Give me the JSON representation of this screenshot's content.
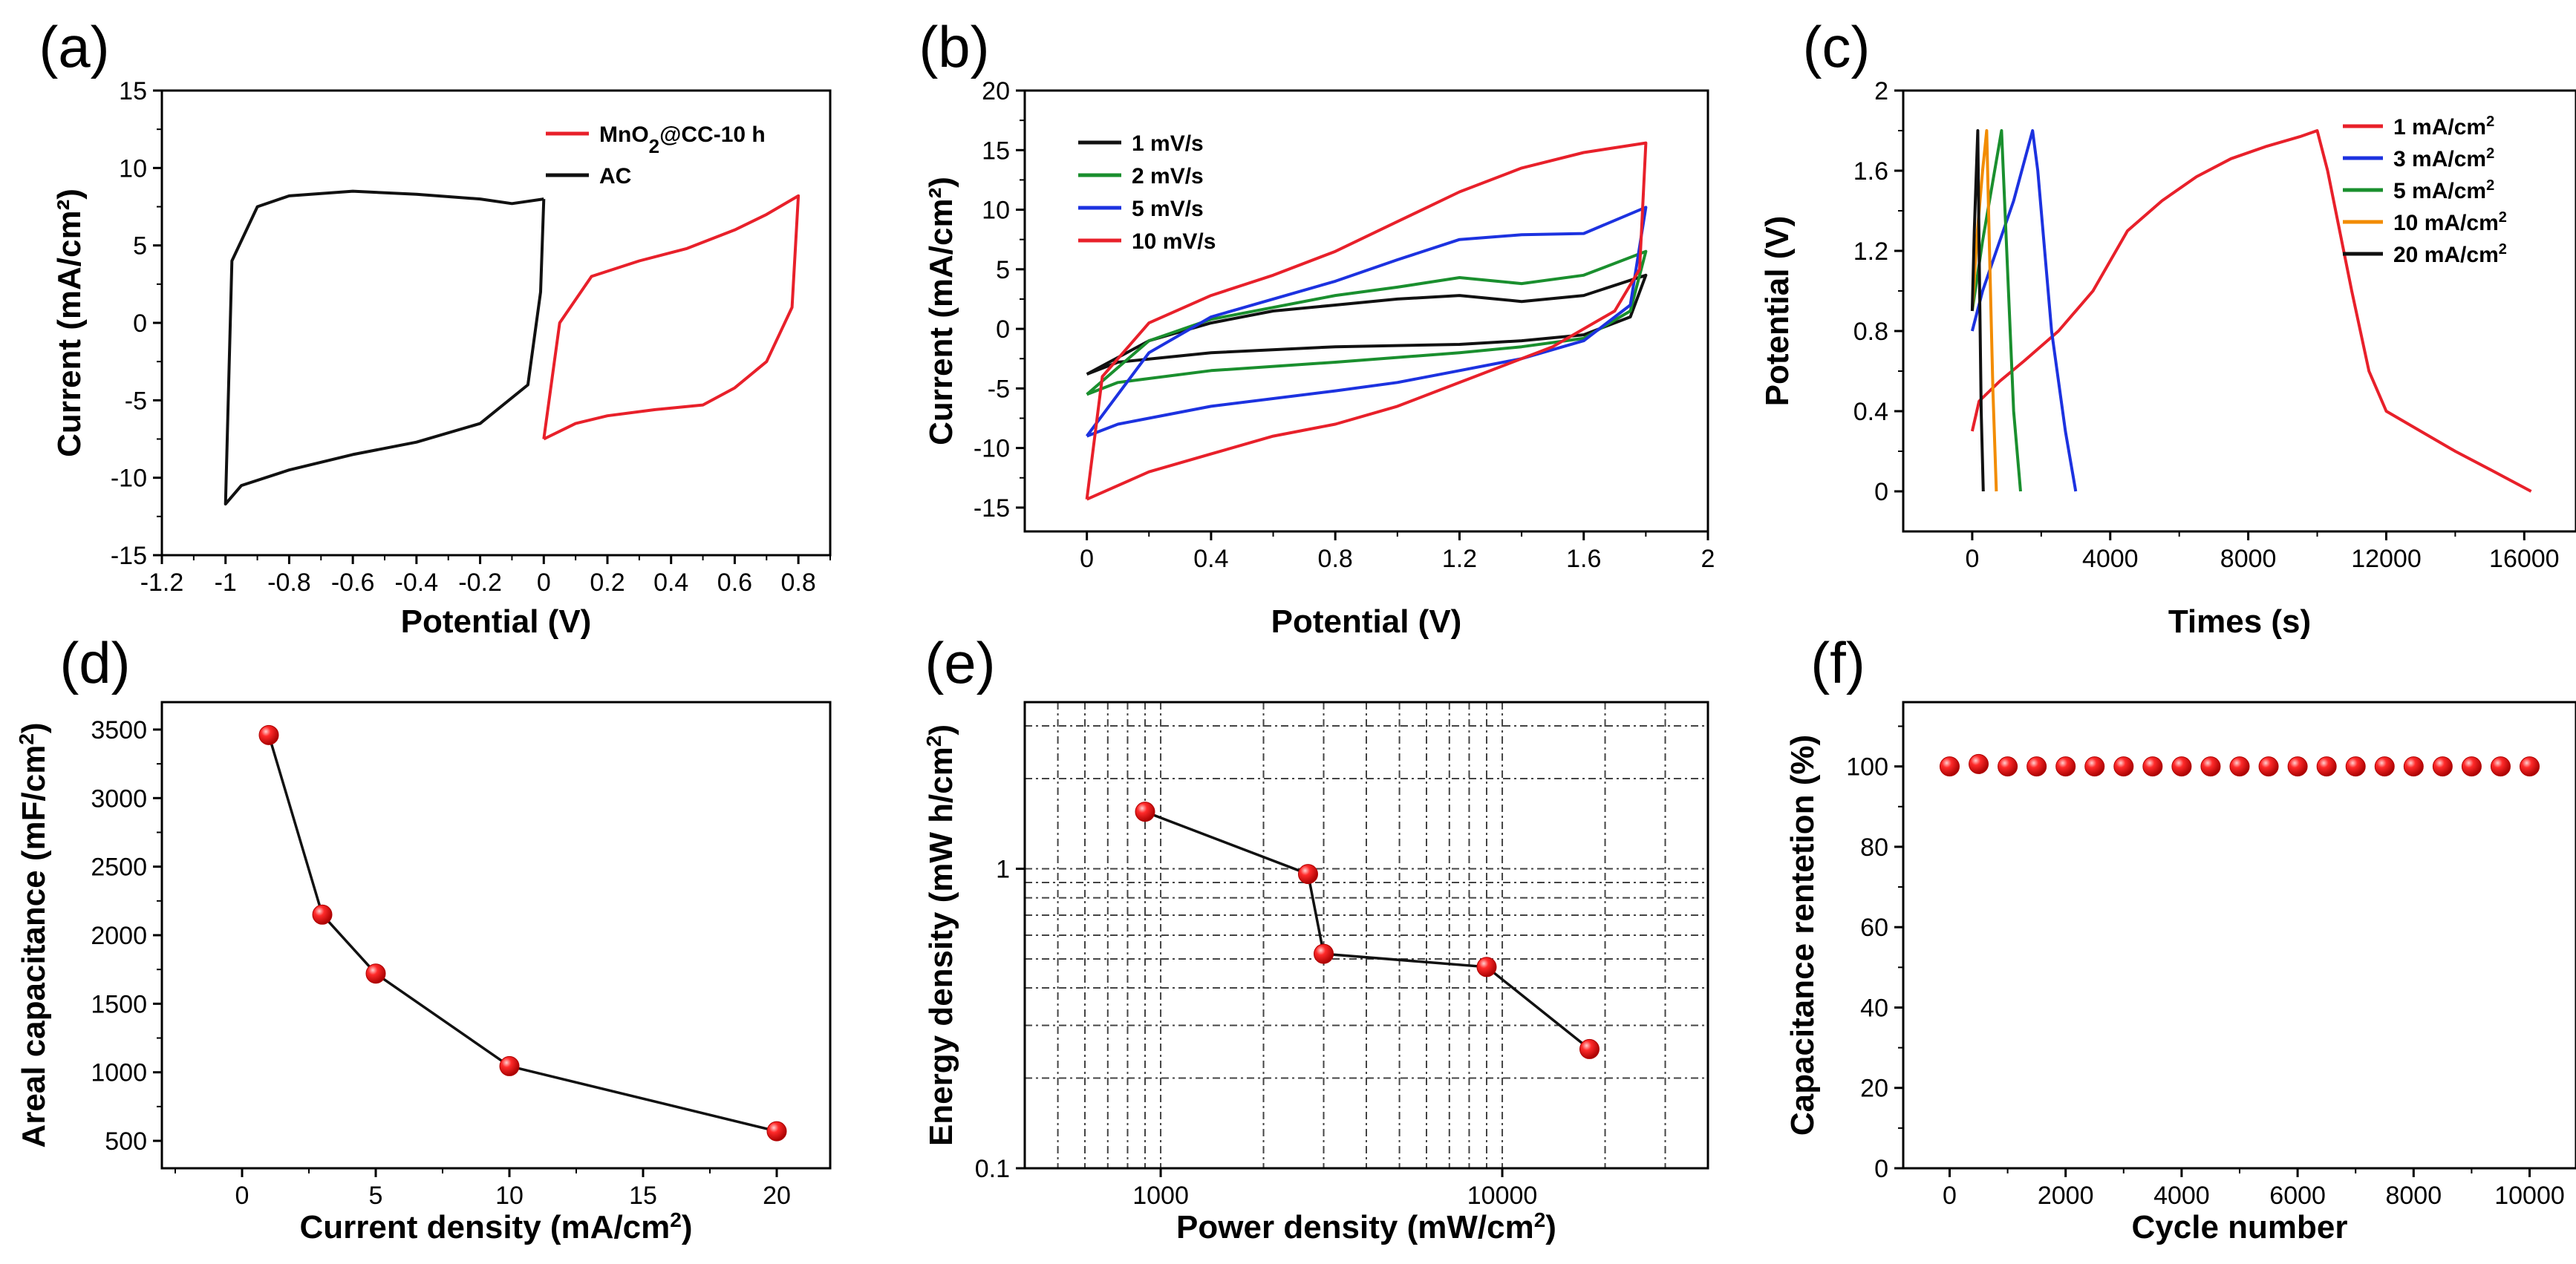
{
  "chart_data": [
    {
      "id": "a",
      "type": "line",
      "panel_label": "(a)",
      "xlabel": "Potential (V)",
      "ylabel": "Current (mA/cm²)",
      "xlim": [
        -1.2,
        0.9
      ],
      "ylim": [
        -15,
        15
      ],
      "xticks": [
        -1.2,
        -1.0,
        -0.8,
        -0.6,
        -0.4,
        -0.2,
        0.0,
        0.2,
        0.4,
        0.6,
        0.8
      ],
      "yticks": [
        -15,
        -10,
        -5,
        0,
        5,
        10,
        15
      ],
      "legend_position": "top-right",
      "series": [
        {
          "name": "MnO2@CC-10 h",
          "label_base": "MnO",
          "label_sub": "2",
          "label_rest": "@CC-10 h",
          "color": "#e8202a",
          "points": [
            [
              0,
              -7.5
            ],
            [
              0.1,
              -6.5
            ],
            [
              0.2,
              -6.0
            ],
            [
              0.35,
              -5.6
            ],
            [
              0.5,
              -5.3
            ],
            [
              0.6,
              -4.2
            ],
            [
              0.7,
              -2.5
            ],
            [
              0.78,
              1.0
            ],
            [
              0.8,
              8.2
            ],
            [
              0.7,
              7.0
            ],
            [
              0.6,
              6.0
            ],
            [
              0.45,
              4.8
            ],
            [
              0.3,
              4.0
            ],
            [
              0.15,
              3.0
            ],
            [
              0.05,
              0
            ],
            [
              0,
              -7.5
            ]
          ]
        },
        {
          "name": "AC",
          "color": "#111111",
          "points": [
            [
              0,
              8.0
            ],
            [
              -0.1,
              7.7
            ],
            [
              -0.2,
              8.0
            ],
            [
              -0.4,
              8.3
            ],
            [
              -0.6,
              8.5
            ],
            [
              -0.8,
              8.2
            ],
            [
              -0.9,
              7.5
            ],
            [
              -0.98,
              4.0
            ],
            [
              -1.0,
              -11.7
            ],
            [
              -0.95,
              -10.5
            ],
            [
              -0.8,
              -9.5
            ],
            [
              -0.6,
              -8.5
            ],
            [
              -0.4,
              -7.7
            ],
            [
              -0.2,
              -6.5
            ],
            [
              -0.05,
              -4.0
            ],
            [
              -0.01,
              2.0
            ],
            [
              0,
              8.0
            ]
          ]
        }
      ]
    },
    {
      "id": "b",
      "type": "line",
      "panel_label": "(b)",
      "xlabel": "Potential (V)",
      "ylabel": "Current (mA/cm²)",
      "xlim": [
        -0.2,
        2.0
      ],
      "ylim": [
        -17,
        20
      ],
      "xticks": [
        0.0,
        0.4,
        0.8,
        1.2,
        1.6,
        2.0
      ],
      "yticks": [
        -15,
        -10,
        -5,
        0,
        5,
        10,
        15,
        20
      ],
      "legend_position": "top-left",
      "series": [
        {
          "name": "1 mV/s",
          "color": "#111111",
          "points": [
            [
              0,
              -3.8
            ],
            [
              0.2,
              -1.0
            ],
            [
              0.4,
              0.5
            ],
            [
              0.6,
              1.5
            ],
            [
              0.8,
              2.0
            ],
            [
              1.0,
              2.5
            ],
            [
              1.2,
              2.8
            ],
            [
              1.4,
              2.3
            ],
            [
              1.6,
              2.8
            ],
            [
              1.8,
              4.5
            ],
            [
              1.75,
              1.0
            ],
            [
              1.6,
              -0.5
            ],
            [
              1.4,
              -1.0
            ],
            [
              1.2,
              -1.3
            ],
            [
              0.8,
              -1.5
            ],
            [
              0.4,
              -2.0
            ],
            [
              0.1,
              -2.8
            ],
            [
              0,
              -3.8
            ]
          ]
        },
        {
          "name": "2 mV/s",
          "color": "#1a8f2e",
          "points": [
            [
              0,
              -5.5
            ],
            [
              0.2,
              -1.0
            ],
            [
              0.4,
              0.8
            ],
            [
              0.6,
              1.8
            ],
            [
              0.8,
              2.8
            ],
            [
              1.0,
              3.5
            ],
            [
              1.2,
              4.3
            ],
            [
              1.4,
              3.8
            ],
            [
              1.6,
              4.5
            ],
            [
              1.8,
              6.5
            ],
            [
              1.75,
              1.5
            ],
            [
              1.6,
              -0.8
            ],
            [
              1.4,
              -1.5
            ],
            [
              1.2,
              -2.0
            ],
            [
              0.8,
              -2.8
            ],
            [
              0.4,
              -3.5
            ],
            [
              0.1,
              -4.5
            ],
            [
              0,
              -5.5
            ]
          ]
        },
        {
          "name": "5 mV/s",
          "color": "#1c32e0",
          "points": [
            [
              0,
              -9.0
            ],
            [
              0.2,
              -2.0
            ],
            [
              0.4,
              1.0
            ],
            [
              0.6,
              2.5
            ],
            [
              0.8,
              4.0
            ],
            [
              1.0,
              5.8
            ],
            [
              1.2,
              7.5
            ],
            [
              1.4,
              7.9
            ],
            [
              1.6,
              8.0
            ],
            [
              1.8,
              10.2
            ],
            [
              1.75,
              2.0
            ],
            [
              1.6,
              -1.0
            ],
            [
              1.4,
              -2.5
            ],
            [
              1.2,
              -3.5
            ],
            [
              1.0,
              -4.5
            ],
            [
              0.8,
              -5.2
            ],
            [
              0.4,
              -6.5
            ],
            [
              0.1,
              -8.0
            ],
            [
              0,
              -9.0
            ]
          ]
        },
        {
          "name": "10 mV/s",
          "color": "#e8202a",
          "points": [
            [
              0,
              -14.3
            ],
            [
              0.05,
              -4.0
            ],
            [
              0.2,
              0.5
            ],
            [
              0.4,
              2.8
            ],
            [
              0.6,
              4.5
            ],
            [
              0.8,
              6.5
            ],
            [
              1.0,
              9.0
            ],
            [
              1.2,
              11.5
            ],
            [
              1.4,
              13.5
            ],
            [
              1.6,
              14.8
            ],
            [
              1.8,
              15.6
            ],
            [
              1.78,
              5.0
            ],
            [
              1.7,
              1.5
            ],
            [
              1.5,
              -1.5
            ],
            [
              1.2,
              -4.5
            ],
            [
              1.0,
              -6.5
            ],
            [
              0.8,
              -8.0
            ],
            [
              0.6,
              -9.0
            ],
            [
              0.4,
              -10.5
            ],
            [
              0.2,
              -12.0
            ],
            [
              0,
              -14.3
            ]
          ]
        }
      ]
    },
    {
      "id": "c",
      "type": "line",
      "panel_label": "(c)",
      "xlabel": "Times (s)",
      "ylabel": "Potential (V)",
      "xlim": [
        -2000,
        17500
      ],
      "ylim": [
        -0.2,
        2.0
      ],
      "xticks": [
        0,
        4000,
        8000,
        12000,
        16000
      ],
      "yticks": [
        0.0,
        0.4,
        0.8,
        1.2,
        1.6,
        2.0
      ],
      "legend_position": "top-right",
      "series": [
        {
          "name": "1 mA/cm2",
          "label_base": "1 mA/cm",
          "label_sup": "2",
          "color": "#e8202a",
          "points": [
            [
              0,
              0.3
            ],
            [
              200,
              0.45
            ],
            [
              800,
              0.55
            ],
            [
              1500,
              0.65
            ],
            [
              2500,
              0.8
            ],
            [
              3500,
              1.0
            ],
            [
              4500,
              1.3
            ],
            [
              5500,
              1.45
            ],
            [
              6500,
              1.57
            ],
            [
              7500,
              1.66
            ],
            [
              8500,
              1.72
            ],
            [
              9500,
              1.77
            ],
            [
              10000,
              1.8
            ],
            [
              10300,
              1.6
            ],
            [
              11000,
              1.0
            ],
            [
              11500,
              0.6
            ],
            [
              12000,
              0.4
            ],
            [
              13000,
              0.3
            ],
            [
              14000,
              0.2
            ],
            [
              15000,
              0.11
            ],
            [
              16200,
              0.0
            ]
          ]
        },
        {
          "name": "3 mA/cm2",
          "label_base": "3 mA/cm",
          "label_sup": "2",
          "color": "#1c32e0",
          "points": [
            [
              0,
              0.8
            ],
            [
              300,
              1.0
            ],
            [
              700,
              1.2
            ],
            [
              1200,
              1.45
            ],
            [
              1750,
              1.8
            ],
            [
              1900,
              1.6
            ],
            [
              2300,
              0.8
            ],
            [
              2700,
              0.3
            ],
            [
              3000,
              0.0
            ]
          ]
        },
        {
          "name": "5 mA/cm2",
          "label_base": "5 mA/cm",
          "label_sup": "2",
          "color": "#1a8f2e",
          "points": [
            [
              0,
              0.9
            ],
            [
              300,
              1.25
            ],
            [
              600,
              1.55
            ],
            [
              850,
              1.8
            ],
            [
              1000,
              1.2
            ],
            [
              1200,
              0.4
            ],
            [
              1400,
              0.0
            ]
          ]
        },
        {
          "name": "10 mA/cm2",
          "label_base": "10 mA/cm",
          "label_sup": "2",
          "color": "#f28c00",
          "points": [
            [
              0,
              0.9
            ],
            [
              150,
              1.3
            ],
            [
              300,
              1.6
            ],
            [
              420,
              1.8
            ],
            [
              500,
              1.2
            ],
            [
              600,
              0.5
            ],
            [
              700,
              0.0
            ]
          ]
        },
        {
          "name": "20 mA/cm2",
          "label_base": "20 mA/cm",
          "label_sup": "2",
          "color": "#111111",
          "points": [
            [
              0,
              0.9
            ],
            [
              60,
              1.3
            ],
            [
              120,
              1.6
            ],
            [
              160,
              1.8
            ],
            [
              200,
              1.2
            ],
            [
              260,
              0.4
            ],
            [
              320,
              0.0
            ]
          ]
        }
      ]
    },
    {
      "id": "d",
      "type": "line",
      "panel_label": "(d)",
      "xlabel_base": "Current density (mA/cm",
      "xlabel_sup": "2",
      "xlabel_close": ")",
      "ylabel_base": "Areal capacitance (mF/cm",
      "ylabel_sup": "2",
      "ylabel_close": ")",
      "xlim": [
        -3,
        22
      ],
      "ylim": [
        300,
        3700
      ],
      "xticks": [
        0,
        5,
        10,
        15,
        20
      ],
      "yticks": [
        500,
        1000,
        1500,
        2000,
        2500,
        3000,
        3500
      ],
      "series": [
        {
          "name": "Areal capacitance",
          "color": "#111111",
          "marker_color": "#e8202a",
          "x": [
            1,
            3,
            5,
            10,
            20
          ],
          "y": [
            3460,
            2150,
            1720,
            1045,
            570
          ]
        }
      ]
    },
    {
      "id": "e",
      "type": "line",
      "panel_label": "(e)",
      "xlabel_base": "Power density (mW/cm",
      "xlabel_sup": "2",
      "xlabel_close": ")",
      "ylabel_base": "Energy density (mW h/cm",
      "ylabel_sup": "2",
      "ylabel_close": ")",
      "xscale": "log",
      "yscale": "log",
      "xlim": [
        400,
        40000
      ],
      "ylim": [
        0.1,
        3.6
      ],
      "xticks": [
        1000,
        10000
      ],
      "xtick_labels": [
        "1000",
        "10000"
      ],
      "yticks": [
        0.1,
        1
      ],
      "ytick_labels": [
        "0.1",
        "1"
      ],
      "grid": true,
      "series": [
        {
          "name": "Energy density",
          "color": "#111111",
          "marker_color": "#e8202a",
          "x": [
            900,
            2700,
            3000,
            9000,
            18000
          ],
          "y": [
            1.55,
            0.96,
            0.52,
            0.47,
            0.25
          ]
        }
      ]
    },
    {
      "id": "f",
      "type": "scatter",
      "panel_label": "(f)",
      "xlabel": "Cycle number",
      "ylabel": "Capacitance rentetion (%)",
      "xlim": [
        -800,
        10800
      ],
      "ylim": [
        0,
        116
      ],
      "xticks": [
        0,
        2000,
        4000,
        6000,
        8000,
        10000
      ],
      "yticks": [
        0,
        20,
        40,
        60,
        80,
        100
      ],
      "series": [
        {
          "name": "Capacitance retention",
          "marker_color": "#e8202a",
          "x": [
            0,
            500,
            1000,
            1500,
            2000,
            2500,
            3000,
            3500,
            4000,
            4500,
            5000,
            5500,
            6000,
            6500,
            7000,
            7500,
            8000,
            8500,
            9000,
            9500,
            10000
          ],
          "y": [
            100,
            100.6,
            100,
            100,
            100,
            100,
            100,
            100,
            100,
            100,
            100,
            100,
            100,
            100,
            100,
            100,
            100,
            100,
            100,
            100,
            100
          ]
        }
      ]
    }
  ]
}
